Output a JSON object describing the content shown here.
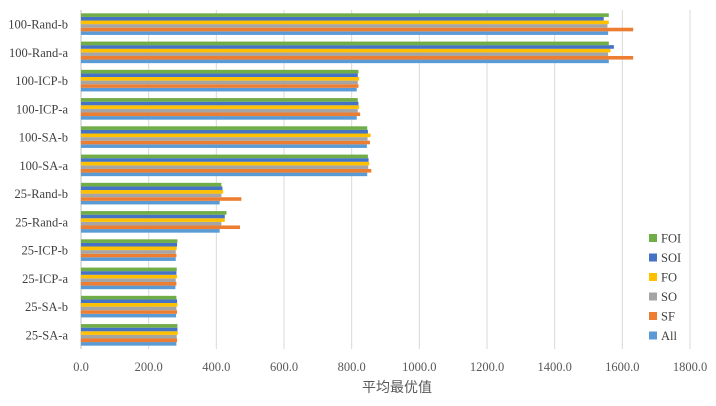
{
  "chart_data": {
    "type": "bar",
    "orientation": "horizontal",
    "title": "",
    "xlabel": "平均最优值",
    "ylabel": "",
    "xlim": [
      0,
      1800
    ],
    "x_ticks": [
      "0.0",
      "200.0",
      "400.0",
      "600.0",
      "800.0",
      "1000.0",
      "1200.0",
      "1400.0",
      "1600.0",
      "1800.0"
    ],
    "grid": "vertical",
    "legend_position": "right",
    "categories": [
      "25-SA-a",
      "25-SA-b",
      "25-ICP-a",
      "25-ICP-b",
      "25-Rand-a",
      "25-Rand-b",
      "100-SA-a",
      "100-SA-b",
      "100-ICP-a",
      "100-ICP-b",
      "100-Rand-a",
      "100-Rand-b"
    ],
    "series": [
      {
        "name": "All",
        "color": "#5b9bd5",
        "values": [
          282,
          281,
          279,
          280,
          410,
          410,
          846,
          845,
          815,
          815,
          1560,
          1558
        ]
      },
      {
        "name": "SF",
        "color": "#ed7d31",
        "values": [
          284,
          284,
          282,
          282,
          470,
          474,
          858,
          854,
          825,
          820,
          1632,
          1632
        ]
      },
      {
        "name": "SO",
        "color": "#a5a5a5",
        "values": [
          283,
          282,
          280,
          280,
          415,
          415,
          849,
          847,
          818,
          818,
          1558,
          1556
        ]
      },
      {
        "name": "FO",
        "color": "#ffc000",
        "values": [
          286,
          285,
          284,
          283,
          425,
          420,
          852,
          856,
          822,
          822,
          1565,
          1560
        ]
      },
      {
        "name": "SOI",
        "color": "#4472c4",
        "values": [
          285,
          284,
          282,
          284,
          425,
          418,
          850,
          848,
          820,
          818,
          1575,
          1545
        ]
      },
      {
        "name": "FOI",
        "color": "#70ad47",
        "values": [
          285,
          282,
          283,
          285,
          430,
          415,
          848,
          846,
          818,
          820,
          1560,
          1560
        ]
      }
    ]
  }
}
